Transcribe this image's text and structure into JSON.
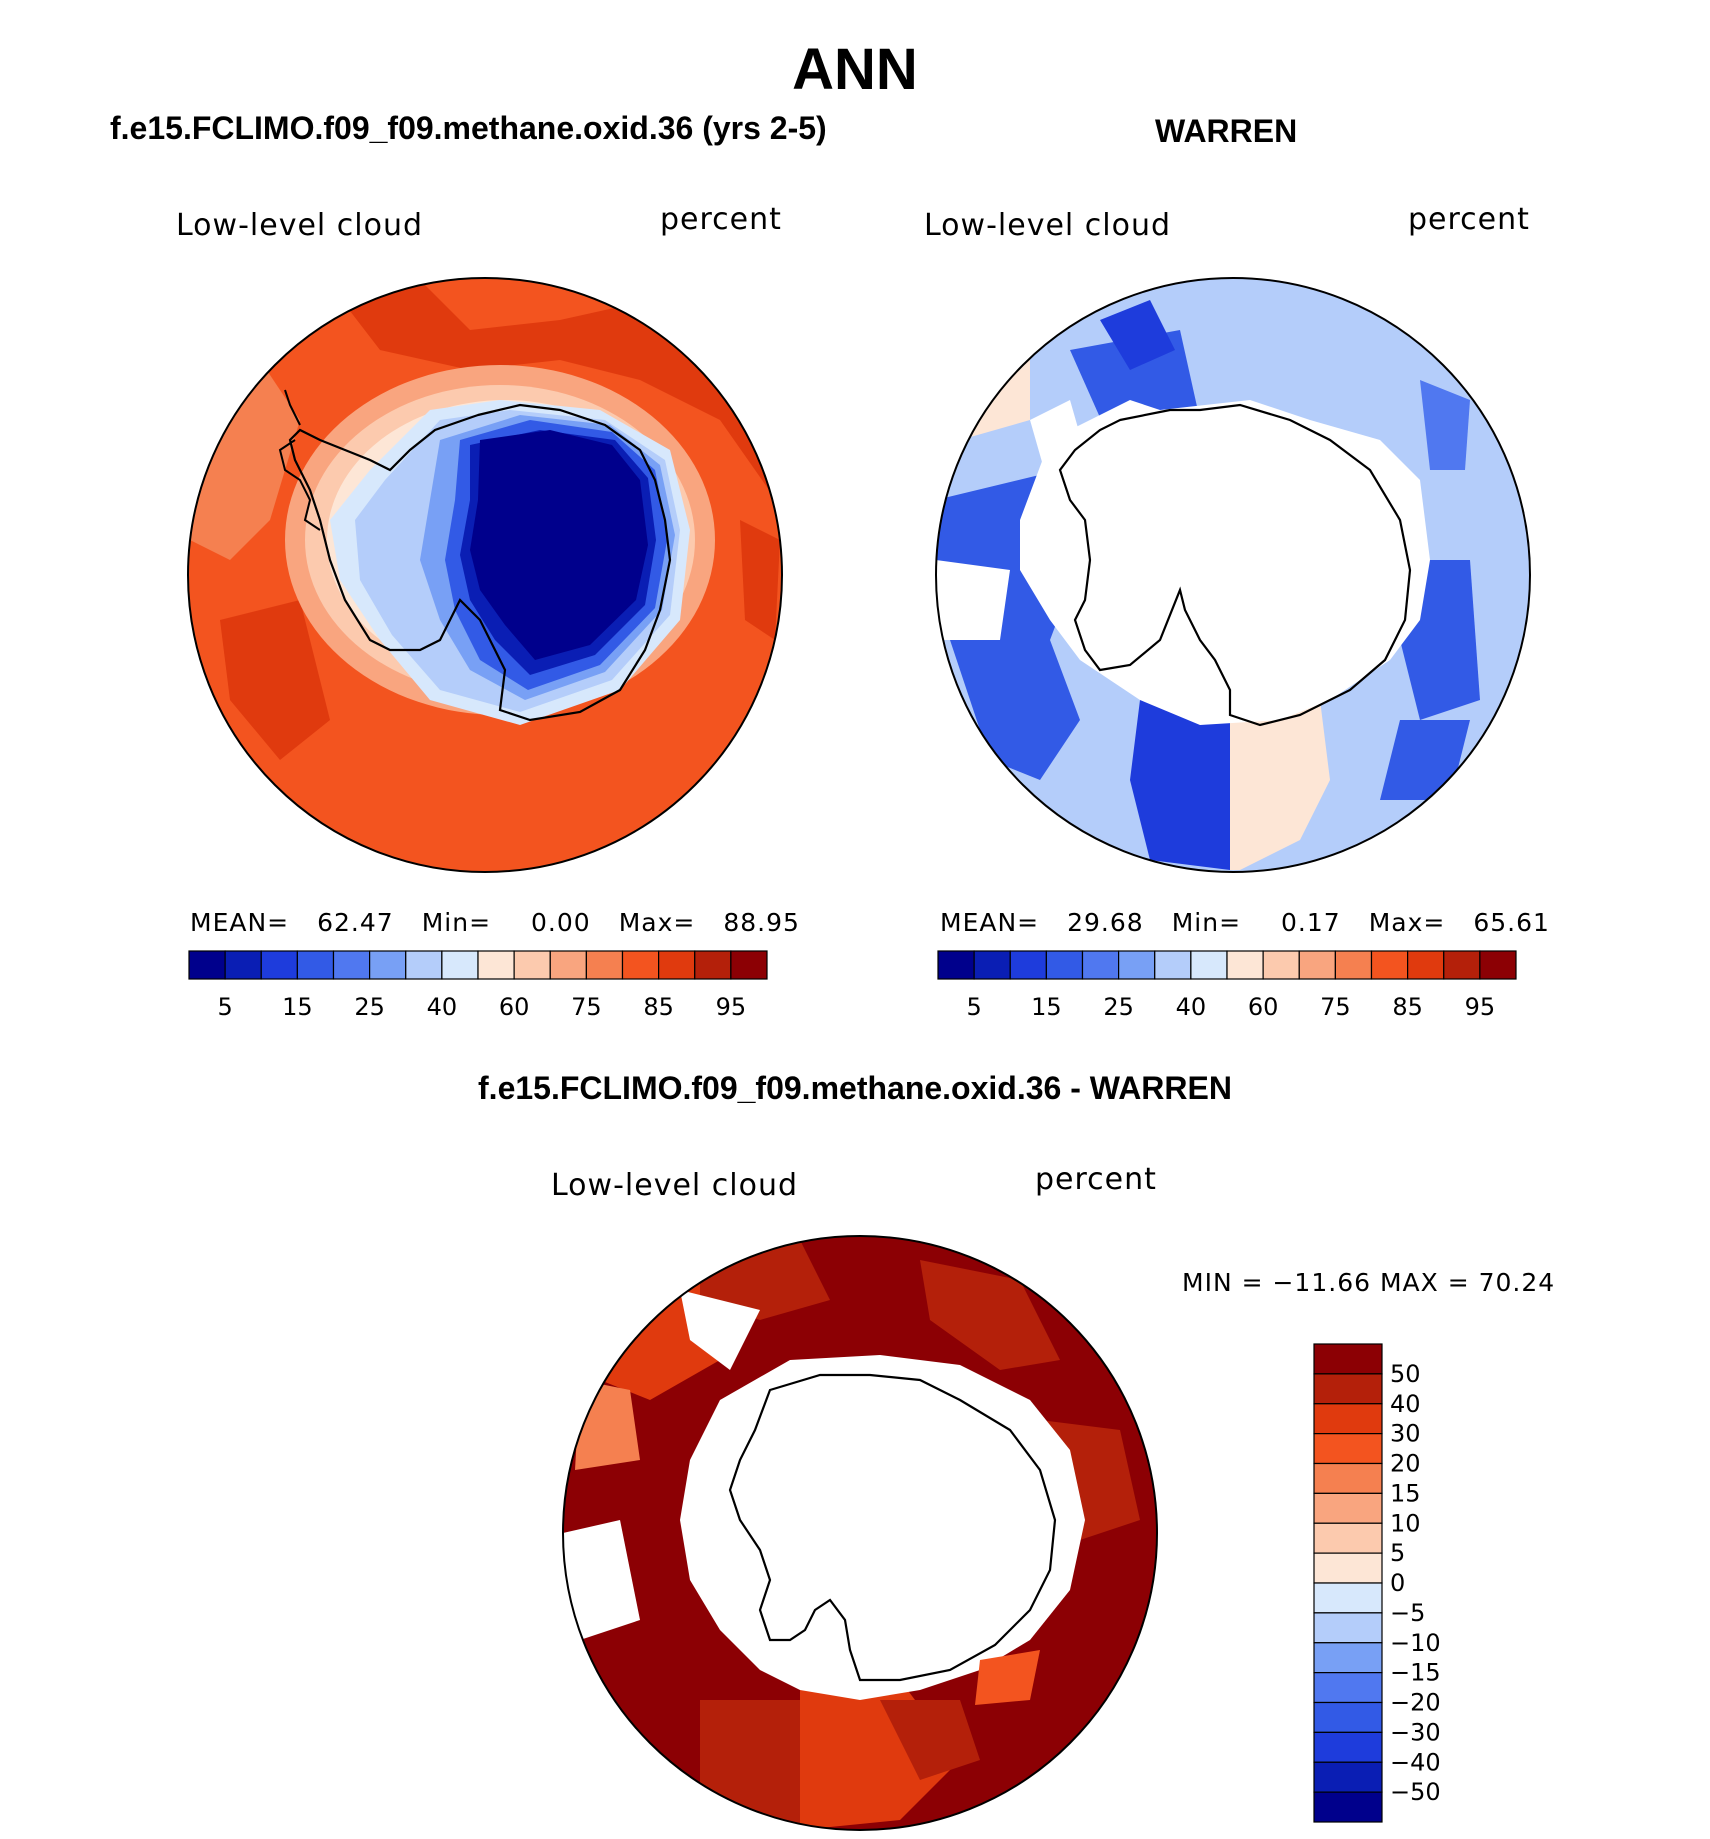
{
  "figure": {
    "title": "ANN",
    "left_panel_title": "f.e15.FCLIMO.f09_f09.methane.oxid.36 (yrs 2-5)",
    "right_panel_title": "WARREN",
    "diff_panel_title": "f.e15.FCLIMO.f09_f09.methane.oxid.36 - WARREN"
  },
  "panels": {
    "model": {
      "variable": "Low-level cloud",
      "units": "percent",
      "mean_label": "MEAN=",
      "mean": "62.47",
      "min_label": "Min=",
      "min": "0.00",
      "max_label": "Max=",
      "max": "88.95"
    },
    "obs": {
      "variable": "Low-level cloud",
      "units": "percent",
      "mean_label": "MEAN=",
      "mean": "29.68",
      "min_label": "Min=",
      "min": "0.17",
      "max_label": "Max=",
      "max": "65.61"
    },
    "diff": {
      "variable": "Low-level cloud",
      "units": "percent",
      "minmax_text": "MIN = −11.66 MAX =   70.24"
    }
  },
  "colorbar_abs": {
    "tick_labels": [
      "5",
      "15",
      "25",
      "40",
      "60",
      "75",
      "85",
      "95"
    ],
    "colors": [
      "#00008c",
      "#0a1eb4",
      "#1e3cdc",
      "#325ae6",
      "#5078f0",
      "#78a0f5",
      "#b4cdfa",
      "#d7e8fc",
      "#fde6d6",
      "#fccaae",
      "#f9a57f",
      "#f58050",
      "#f3541f",
      "#e03a0e",
      "#b4200a",
      "#8c0004"
    ]
  },
  "colorbar_diff": {
    "tick_labels": [
      "50",
      "40",
      "30",
      "20",
      "15",
      "10",
      "5",
      "0",
      "−5",
      "−10",
      "−15",
      "−20",
      "−30",
      "−40",
      "−50"
    ],
    "colors": [
      "#8c0004",
      "#b4200a",
      "#e03a0e",
      "#f3541f",
      "#f58050",
      "#f9a57f",
      "#fccaae",
      "#fde6d6",
      "#d7e8fc",
      "#b4cdfa",
      "#78a0f5",
      "#5078f0",
      "#325ae6",
      "#1e3cdc",
      "#0a1eb4",
      "#00008c"
    ]
  },
  "chart_data": [
    {
      "type": "heatmap",
      "title": "f.e15.FCLIMO.f09_f09.methane.oxid.36 (yrs 2-5)",
      "projection": "south polar stereographic",
      "variable": "Low-level cloud",
      "units": "percent",
      "levels": [
        5,
        10,
        15,
        20,
        25,
        30,
        40,
        50,
        60,
        70,
        75,
        80,
        85,
        90,
        95
      ],
      "stats": {
        "mean": 62.47,
        "min": 0.0,
        "max": 88.95
      }
    },
    {
      "type": "heatmap",
      "title": "WARREN",
      "projection": "south polar stereographic",
      "variable": "Low-level cloud",
      "units": "percent",
      "levels": [
        5,
        10,
        15,
        20,
        25,
        30,
        40,
        50,
        60,
        70,
        75,
        80,
        85,
        90,
        95
      ],
      "stats": {
        "mean": 29.68,
        "min": 0.17,
        "max": 65.61
      }
    },
    {
      "type": "heatmap",
      "title": "f.e15.FCLIMO.f09_f09.methane.oxid.36 - WARREN",
      "projection": "south polar stereographic",
      "variable": "Low-level cloud",
      "units": "percent",
      "levels": [
        -50,
        -40,
        -30,
        -20,
        -15,
        -10,
        -5,
        0,
        5,
        10,
        15,
        20,
        30,
        40,
        50
      ],
      "stats": {
        "min": -11.66,
        "max": 70.24
      }
    }
  ]
}
